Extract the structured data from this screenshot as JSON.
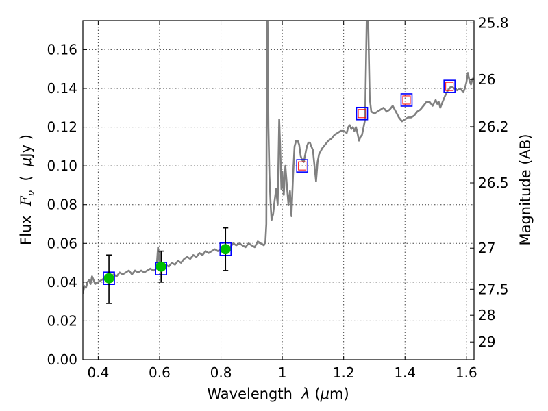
{
  "chart_data": {
    "type": "scatter",
    "xlabel_prefix": "Wavelength  ",
    "xlabel_symbol": "λ",
    "xlabel_suffix": " (",
    "xlabel_unit_mu": "μ",
    "xlabel_unit_rest": "m)",
    "ylabel_prefix": "Flux  ",
    "ylabel_symbol": "F",
    "ylabel_subscript": "ν",
    "ylabel_paren_open": "  (  ",
    "ylabel_unit_mu": "μ",
    "ylabel_unit_rest": "Jy )",
    "y2label": "Magnitude (AB)",
    "xlim": [
      0.35,
      1.625
    ],
    "ylim": [
      0.0,
      0.175
    ],
    "grid": true,
    "x_ticks": [
      {
        "value": 0.4,
        "label": "0.4"
      },
      {
        "value": 0.6,
        "label": "0.6"
      },
      {
        "value": 0.8,
        "label": "0.8"
      },
      {
        "value": 1.0,
        "label": "1"
      },
      {
        "value": 1.2,
        "label": "1.2"
      },
      {
        "value": 1.4,
        "label": "1.4"
      },
      {
        "value": 1.6,
        "label": "1.6"
      }
    ],
    "y_ticks": [
      {
        "value": 0.0,
        "label": "0.00"
      },
      {
        "value": 0.02,
        "label": "0.02"
      },
      {
        "value": 0.04,
        "label": "0.04"
      },
      {
        "value": 0.06,
        "label": "0.06"
      },
      {
        "value": 0.08,
        "label": "0.08"
      },
      {
        "value": 0.1,
        "label": "0.10"
      },
      {
        "value": 0.12,
        "label": "0.12"
      },
      {
        "value": 0.14,
        "label": "0.14"
      },
      {
        "value": 0.16,
        "label": "0.16"
      }
    ],
    "magnitude_ticks": [
      {
        "value": 25.8,
        "label": "25.8"
      },
      {
        "value": 26.0,
        "label": "26"
      },
      {
        "value": 26.2,
        "label": "26.2"
      },
      {
        "value": 26.5,
        "label": "26.5"
      },
      {
        "value": 27.0,
        "label": "27"
      },
      {
        "value": 27.5,
        "label": "27.5"
      },
      {
        "value": 28.0,
        "label": "28"
      },
      {
        "value": 29.0,
        "label": "29"
      }
    ],
    "series": [
      {
        "name": "model spectrum",
        "kind": "line",
        "color": "#808080",
        "points": [
          [
            0.35,
            0.034
          ],
          [
            0.355,
            0.038
          ],
          [
            0.36,
            0.037
          ],
          [
            0.365,
            0.04
          ],
          [
            0.37,
            0.041
          ],
          [
            0.375,
            0.039
          ],
          [
            0.38,
            0.043
          ],
          [
            0.385,
            0.041
          ],
          [
            0.39,
            0.039
          ],
          [
            0.4,
            0.04
          ],
          [
            0.41,
            0.041
          ],
          [
            0.42,
            0.042
          ],
          [
            0.43,
            0.043
          ],
          [
            0.44,
            0.043
          ],
          [
            0.45,
            0.044
          ],
          [
            0.46,
            0.043
          ],
          [
            0.47,
            0.045
          ],
          [
            0.48,
            0.044
          ],
          [
            0.49,
            0.045
          ],
          [
            0.5,
            0.046
          ],
          [
            0.51,
            0.044
          ],
          [
            0.52,
            0.046
          ],
          [
            0.53,
            0.045
          ],
          [
            0.54,
            0.046
          ],
          [
            0.55,
            0.045
          ],
          [
            0.56,
            0.046
          ],
          [
            0.57,
            0.047
          ],
          [
            0.58,
            0.046
          ],
          [
            0.59,
            0.047
          ],
          [
            0.595,
            0.058
          ],
          [
            0.6,
            0.049
          ],
          [
            0.61,
            0.048
          ],
          [
            0.62,
            0.049
          ],
          [
            0.63,
            0.048
          ],
          [
            0.64,
            0.05
          ],
          [
            0.65,
            0.049
          ],
          [
            0.66,
            0.051
          ],
          [
            0.67,
            0.05
          ],
          [
            0.68,
            0.052
          ],
          [
            0.69,
            0.053
          ],
          [
            0.7,
            0.052
          ],
          [
            0.71,
            0.054
          ],
          [
            0.72,
            0.053
          ],
          [
            0.73,
            0.055
          ],
          [
            0.74,
            0.054
          ],
          [
            0.75,
            0.056
          ],
          [
            0.76,
            0.055
          ],
          [
            0.77,
            0.056
          ],
          [
            0.78,
            0.057
          ],
          [
            0.79,
            0.056
          ],
          [
            0.8,
            0.057
          ],
          [
            0.81,
            0.058
          ],
          [
            0.82,
            0.059
          ],
          [
            0.83,
            0.058
          ],
          [
            0.84,
            0.06
          ],
          [
            0.85,
            0.059
          ],
          [
            0.86,
            0.06
          ],
          [
            0.87,
            0.059
          ],
          [
            0.88,
            0.058
          ],
          [
            0.89,
            0.06
          ],
          [
            0.9,
            0.059
          ],
          [
            0.91,
            0.058
          ],
          [
            0.92,
            0.061
          ],
          [
            0.93,
            0.06
          ],
          [
            0.94,
            0.059
          ],
          [
            0.945,
            0.061
          ],
          [
            0.948,
            0.07
          ],
          [
            0.95,
            0.175
          ],
          [
            0.952,
            0.175
          ],
          [
            0.955,
            0.12
          ],
          [
            0.958,
            0.095
          ],
          [
            0.962,
            0.08
          ],
          [
            0.965,
            0.072
          ],
          [
            0.97,
            0.075
          ],
          [
            0.975,
            0.082
          ],
          [
            0.98,
            0.088
          ],
          [
            0.985,
            0.08
          ],
          [
            0.99,
            0.124
          ],
          [
            0.993,
            0.11
          ],
          [
            0.997,
            0.088
          ],
          [
            1.0,
            0.097
          ],
          [
            1.005,
            0.085
          ],
          [
            1.01,
            0.1
          ],
          [
            1.015,
            0.09
          ],
          [
            1.02,
            0.08
          ],
          [
            1.025,
            0.087
          ],
          [
            1.03,
            0.074
          ],
          [
            1.035,
            0.095
          ],
          [
            1.04,
            0.11
          ],
          [
            1.045,
            0.113
          ],
          [
            1.05,
            0.113
          ],
          [
            1.055,
            0.111
          ],
          [
            1.06,
            0.105
          ],
          [
            1.065,
            0.103
          ],
          [
            1.07,
            0.102
          ],
          [
            1.075,
            0.106
          ],
          [
            1.08,
            0.11
          ],
          [
            1.085,
            0.112
          ],
          [
            1.09,
            0.112
          ],
          [
            1.095,
            0.11
          ],
          [
            1.1,
            0.108
          ],
          [
            1.105,
            0.1
          ],
          [
            1.11,
            0.092
          ],
          [
            1.115,
            0.102
          ],
          [
            1.12,
            0.106
          ],
          [
            1.13,
            0.109
          ],
          [
            1.14,
            0.111
          ],
          [
            1.15,
            0.113
          ],
          [
            1.16,
            0.114
          ],
          [
            1.17,
            0.116
          ],
          [
            1.18,
            0.117
          ],
          [
            1.19,
            0.118
          ],
          [
            1.2,
            0.118
          ],
          [
            1.21,
            0.117
          ],
          [
            1.215,
            0.12
          ],
          [
            1.22,
            0.121
          ],
          [
            1.225,
            0.119
          ],
          [
            1.23,
            0.12
          ],
          [
            1.235,
            0.118
          ],
          [
            1.24,
            0.12
          ],
          [
            1.245,
            0.117
          ],
          [
            1.25,
            0.113
          ],
          [
            1.255,
            0.115
          ],
          [
            1.26,
            0.116
          ],
          [
            1.265,
            0.12
          ],
          [
            1.27,
            0.124
          ],
          [
            1.275,
            0.175
          ],
          [
            1.28,
            0.175
          ],
          [
            1.285,
            0.135
          ],
          [
            1.29,
            0.128
          ],
          [
            1.3,
            0.127
          ],
          [
            1.31,
            0.128
          ],
          [
            1.32,
            0.129
          ],
          [
            1.33,
            0.13
          ],
          [
            1.34,
            0.128
          ],
          [
            1.35,
            0.129
          ],
          [
            1.36,
            0.131
          ],
          [
            1.37,
            0.128
          ],
          [
            1.38,
            0.125
          ],
          [
            1.39,
            0.123
          ],
          [
            1.4,
            0.124
          ],
          [
            1.41,
            0.125
          ],
          [
            1.42,
            0.125
          ],
          [
            1.43,
            0.126
          ],
          [
            1.44,
            0.128
          ],
          [
            1.45,
            0.129
          ],
          [
            1.46,
            0.131
          ],
          [
            1.47,
            0.133
          ],
          [
            1.48,
            0.133
          ],
          [
            1.49,
            0.131
          ],
          [
            1.5,
            0.134
          ],
          [
            1.505,
            0.132
          ],
          [
            1.51,
            0.133
          ],
          [
            1.515,
            0.13
          ],
          [
            1.52,
            0.132
          ],
          [
            1.53,
            0.136
          ],
          [
            1.54,
            0.139
          ],
          [
            1.55,
            0.141
          ],
          [
            1.56,
            0.14
          ],
          [
            1.57,
            0.139
          ],
          [
            1.58,
            0.14
          ],
          [
            1.59,
            0.138
          ],
          [
            1.595,
            0.14
          ],
          [
            1.6,
            0.143
          ],
          [
            1.605,
            0.148
          ],
          [
            1.61,
            0.144
          ],
          [
            1.615,
            0.142
          ],
          [
            1.62,
            0.145
          ],
          [
            1.625,
            0.145
          ]
        ]
      },
      {
        "name": "observed photometry",
        "kind": "points_errorbars",
        "color": "#00c000",
        "points": [
          {
            "x": 0.435,
            "y": 0.042,
            "yerr_low": 0.029,
            "yerr_high": 0.054
          },
          {
            "x": 0.605,
            "y": 0.048,
            "yerr_low": 0.04,
            "yerr_high": 0.056
          },
          {
            "x": 0.815,
            "y": 0.057,
            "yerr_low": 0.046,
            "yerr_high": 0.068
          }
        ]
      },
      {
        "name": "model photometry (blue squares)",
        "kind": "markers",
        "color": "#0000ff",
        "points": [
          {
            "x": 0.435,
            "y": 0.042
          },
          {
            "x": 0.605,
            "y": 0.047
          },
          {
            "x": 0.815,
            "y": 0.057
          },
          {
            "x": 1.065,
            "y": 0.1
          },
          {
            "x": 1.26,
            "y": 0.127
          },
          {
            "x": 1.405,
            "y": 0.134
          },
          {
            "x": 1.545,
            "y": 0.141
          }
        ]
      },
      {
        "name": "predicted (red squares)",
        "kind": "markers",
        "color": "#ff0000",
        "points": [
          {
            "x": 1.065,
            "y": 0.1
          },
          {
            "x": 1.26,
            "y": 0.127
          },
          {
            "x": 1.405,
            "y": 0.134
          },
          {
            "x": 1.545,
            "y": 0.141
          }
        ]
      }
    ]
  }
}
